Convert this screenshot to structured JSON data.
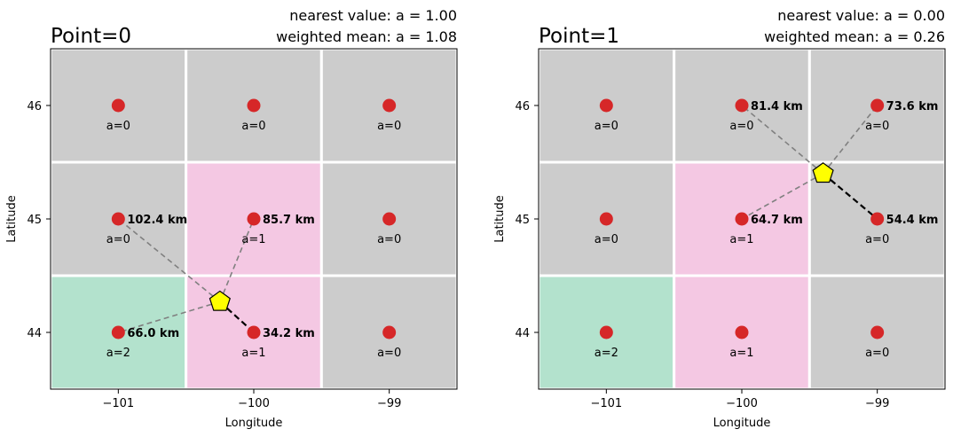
{
  "colors": {
    "cell_a0": "#cccccc",
    "cell_a1": "#f4c8e3",
    "cell_a2": "#b3e2cd",
    "grid_point": "#d62728",
    "target": "#ffff00",
    "near_line": "#000000",
    "far_line": "#808080"
  },
  "chart_data": [
    {
      "type": "scatter",
      "title": "Point=0",
      "annotation_line1": "nearest value:  a = 1.00",
      "annotation_line2": "weighted mean:  a = 1.08",
      "xlabel": "Longitude",
      "ylabel": "Latitude",
      "xlim": [
        -101.5,
        -98.5
      ],
      "ylim": [
        43.5,
        46.5
      ],
      "xticks": [
        -101,
        -100,
        -99
      ],
      "xtick_labels": [
        "−101",
        "−100",
        "−99"
      ],
      "yticks": [
        44,
        45,
        46
      ],
      "ytick_labels": [
        "44",
        "45",
        "46"
      ],
      "grid_points": [
        {
          "lon": -101,
          "lat": 46,
          "a": 0,
          "label": "a=0"
        },
        {
          "lon": -100,
          "lat": 46,
          "a": 0,
          "label": "a=0"
        },
        {
          "lon": -99,
          "lat": 46,
          "a": 0,
          "label": "a=0"
        },
        {
          "lon": -101,
          "lat": 45,
          "a": 0,
          "label": "a=0"
        },
        {
          "lon": -100,
          "lat": 45,
          "a": 1,
          "label": "a=1"
        },
        {
          "lon": -99,
          "lat": 45,
          "a": 0,
          "label": "a=0"
        },
        {
          "lon": -101,
          "lat": 44,
          "a": 2,
          "label": "a=2"
        },
        {
          "lon": -100,
          "lat": 44,
          "a": 1,
          "label": "a=1"
        },
        {
          "lon": -99,
          "lat": 44,
          "a": 0,
          "label": "a=0"
        }
      ],
      "target": {
        "lon": -100.25,
        "lat": 44.27
      },
      "neighbors": [
        {
          "lon": -101,
          "lat": 45,
          "distance": "102.4 km",
          "nearest": false
        },
        {
          "lon": -100,
          "lat": 45,
          "distance": "85.7 km",
          "nearest": false
        },
        {
          "lon": -101,
          "lat": 44,
          "distance": "66.0 km",
          "nearest": false
        },
        {
          "lon": -100,
          "lat": 44,
          "distance": "34.2 km",
          "nearest": true
        }
      ]
    },
    {
      "type": "scatter",
      "title": "Point=1",
      "annotation_line1": "nearest value:  a = 0.00",
      "annotation_line2": "weighted mean:  a = 0.26",
      "xlabel": "Longitude",
      "ylabel": "Latitude",
      "xlim": [
        -101.5,
        -98.5
      ],
      "ylim": [
        43.5,
        46.5
      ],
      "xticks": [
        -101,
        -100,
        -99
      ],
      "xtick_labels": [
        "−101",
        "−100",
        "−99"
      ],
      "yticks": [
        44,
        45,
        46
      ],
      "ytick_labels": [
        "44",
        "45",
        "46"
      ],
      "grid_points": [
        {
          "lon": -101,
          "lat": 46,
          "a": 0,
          "label": "a=0"
        },
        {
          "lon": -100,
          "lat": 46,
          "a": 0,
          "label": "a=0"
        },
        {
          "lon": -99,
          "lat": 46,
          "a": 0,
          "label": "a=0"
        },
        {
          "lon": -101,
          "lat": 45,
          "a": 0,
          "label": "a=0"
        },
        {
          "lon": -100,
          "lat": 45,
          "a": 1,
          "label": "a=1"
        },
        {
          "lon": -99,
          "lat": 45,
          "a": 0,
          "label": "a=0"
        },
        {
          "lon": -101,
          "lat": 44,
          "a": 2,
          "label": "a=2"
        },
        {
          "lon": -100,
          "lat": 44,
          "a": 1,
          "label": "a=1"
        },
        {
          "lon": -99,
          "lat": 44,
          "a": 0,
          "label": "a=0"
        }
      ],
      "target": {
        "lon": -99.4,
        "lat": 45.4
      },
      "neighbors": [
        {
          "lon": -100,
          "lat": 46,
          "distance": "81.4 km",
          "nearest": false
        },
        {
          "lon": -99,
          "lat": 46,
          "distance": "73.6 km",
          "nearest": false
        },
        {
          "lon": -100,
          "lat": 45,
          "distance": "64.7 km",
          "nearest": false
        },
        {
          "lon": -99,
          "lat": 45,
          "distance": "54.4 km",
          "nearest": true
        }
      ]
    }
  ]
}
